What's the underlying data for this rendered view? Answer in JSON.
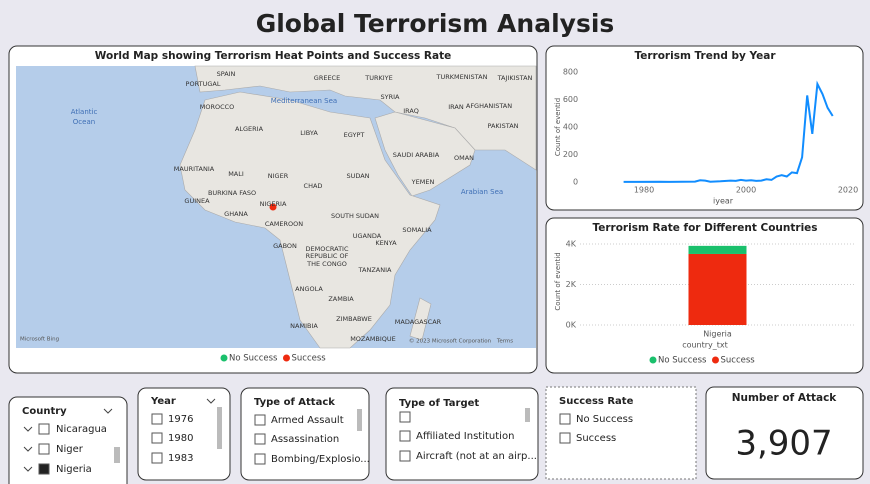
{
  "header": {
    "title": "Global Terrorism Analysis"
  },
  "map": {
    "title": "World Map showing Terrorism Heat Points and Success Rate",
    "labels": [
      "SPAIN",
      "PORTUGAL",
      "GREECE",
      "TURKIYE",
      "TURKMENISTAN",
      "TAJIKISTAN",
      "Atlantic",
      "Ocean",
      "Mediterranean Sea",
      "SYRIA",
      "IRAQ",
      "IRAN",
      "AFGHANISTAN",
      "MOROCCO",
      "ALGERIA",
      "LIBYA",
      "EGYPT",
      "PAKISTAN",
      "SAUDI ARABIA",
      "OMAN",
      "MAURITANIA",
      "MALI",
      "NIGER",
      "CHAD",
      "SUDAN",
      "YEMEN",
      "Arabian Sea",
      "BURKINA FASO",
      "GUINEA",
      "GHANA",
      "NIGERIA",
      "CAMEROON",
      "SOUTH SUDAN",
      "SOMALIA",
      "GABON",
      "DEMOCRATIC",
      "REPUBLIC OF",
      "THE CONGO",
      "UGANDA",
      "KENYA",
      "TANZANIA",
      "ANGOLA",
      "ZAMBIA",
      "ZIMBABWE",
      "NAMIBIA",
      "MADAGASCAR",
      "MOZAMBIQUE"
    ],
    "legend": [
      {
        "name": "No Success",
        "color": "#1ac06c"
      },
      {
        "name": "Success",
        "color": "#ee2a0f"
      }
    ],
    "attribution": [
      "Microsoft Bing",
      "© 2023 Microsoft Corporation",
      "Terms"
    ]
  },
  "chart_data": [
    {
      "type": "line",
      "title": "Terrorism Trend by Year",
      "x_label": "iyear",
      "y_label": "Count of eventid",
      "color": "#118dff",
      "x": [
        1976,
        1983,
        1985,
        1990,
        1991,
        1992,
        1993,
        1995,
        1997,
        1998,
        1999,
        2000,
        2001,
        2002,
        2003,
        2004,
        2005,
        2006,
        2007,
        2008,
        2009,
        2010,
        2011,
        2012,
        2013,
        2014,
        2015,
        2016,
        2017
      ],
      "values": [
        1,
        2,
        1,
        3,
        12,
        10,
        2,
        5,
        10,
        8,
        15,
        10,
        12,
        8,
        10,
        20,
        15,
        40,
        50,
        40,
        70,
        65,
        180,
        630,
        350,
        713,
        640,
        540,
        480
      ],
      "xlim": [
        1971,
        2020
      ],
      "ylim": [
        0,
        800
      ],
      "xticks": [
        1980,
        2000,
        2020
      ],
      "yticks": [
        0,
        200,
        400,
        600,
        800
      ],
      "grid": false
    },
    {
      "type": "bar",
      "stacked": true,
      "title": "Terrorism Rate for Different Countries",
      "x_label": "country_txt",
      "y_label": "Count of eventid",
      "categories": [
        "Nigeria"
      ],
      "series": [
        {
          "name": "No Success",
          "color": "#1ac06c",
          "values": [
            400
          ]
        },
        {
          "name": "Success",
          "color": "#ee2a0f",
          "values": [
            3507
          ]
        }
      ],
      "ylim": [
        0,
        4300
      ],
      "yticks": [
        {
          "value": 0,
          "label": "0K"
        },
        {
          "value": 2000,
          "label": "2K"
        },
        {
          "value": 4000,
          "label": "4K"
        }
      ],
      "grid": true
    }
  ],
  "slicers": [
    {
      "title": "Country",
      "items": [
        "Nicaragua",
        "Niger",
        "Nigeria"
      ],
      "selected": "Nigeria"
    },
    {
      "title": "Year",
      "items": [
        "1976",
        "1980",
        "1983"
      ]
    },
    {
      "title": "Type of Attack",
      "items": [
        "Armed Assault",
        "Assassination",
        "Bombing/Explosio..."
      ]
    },
    {
      "title": "Type of Target",
      "items": [
        "Affiliated Institution",
        "Aircraft (not at an airp..."
      ]
    },
    {
      "title": "Success Rate",
      "items": [
        "No Success",
        "Success"
      ]
    }
  ],
  "card": {
    "title": "Number of Attack",
    "value": "3,907"
  }
}
